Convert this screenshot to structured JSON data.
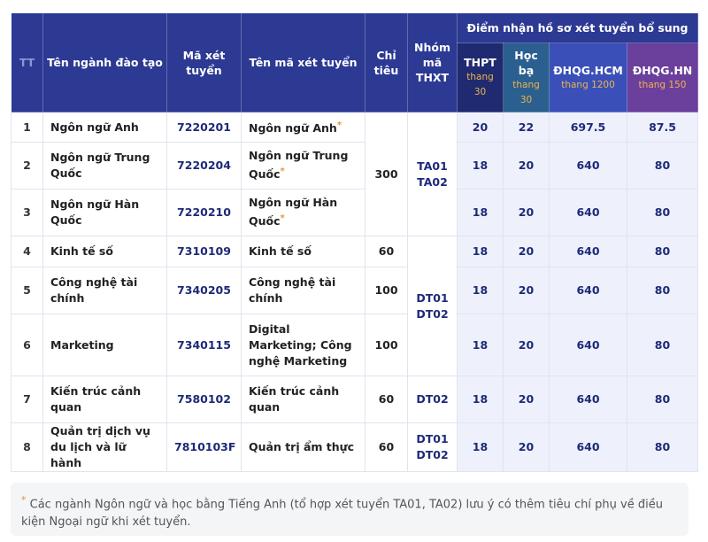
{
  "header": {
    "tt": "TT",
    "program": "Tên ngành đào tạo",
    "code": "Mã xét tuyển",
    "code_name": "Tên mã xét tuyển",
    "quota": "Chỉ tiêu",
    "group": "Nhóm mã THXT",
    "scores_title": "Điểm nhận hồ sơ xét tuyển bổ sung",
    "score_cols": [
      {
        "name": "THPT",
        "scale": "thang 30"
      },
      {
        "name": "Học bạ",
        "scale": "thang 30"
      },
      {
        "name": "ĐHQG.HCM",
        "scale": "thang 1200"
      },
      {
        "name": "ĐHQG.HN",
        "scale": "thang 150"
      }
    ]
  },
  "rows": [
    {
      "tt": "1",
      "program": "Ngôn ngữ Anh",
      "code": "7220201",
      "code_name": "Ngôn ngữ Anh",
      "code_name_marker": "*",
      "quota": "300",
      "group": [
        "TA01",
        "TA02"
      ],
      "scores": [
        "20",
        "22",
        "697.5",
        "87.5"
      ]
    },
    {
      "tt": "2",
      "program": "Ngôn ngữ Trung Quốc",
      "code": "7220204",
      "code_name": "Ngôn ngữ Trung Quốc",
      "code_name_marker": "*",
      "scores": [
        "18",
        "20",
        "640",
        "80"
      ]
    },
    {
      "tt": "3",
      "program": "Ngôn ngữ Hàn Quốc",
      "code": "7220210",
      "code_name": "Ngôn ngữ Hàn Quốc",
      "code_name_marker": "*",
      "scores": [
        "18",
        "20",
        "640",
        "80"
      ]
    },
    {
      "tt": "4",
      "program": "Kinh tế số",
      "code": "7310109",
      "code_name": "Kinh tế số",
      "quota": "60",
      "group": [
        "DT01",
        "DT02"
      ],
      "scores": [
        "18",
        "20",
        "640",
        "80"
      ]
    },
    {
      "tt": "5",
      "program": "Công nghệ tài chính",
      "code": "7340205",
      "code_name": "Công nghệ tài chính",
      "quota": "100",
      "scores": [
        "18",
        "20",
        "640",
        "80"
      ]
    },
    {
      "tt": "6",
      "program": "Marketing",
      "code": "7340115",
      "code_name": "Digital Marketing; Công nghệ Marketing",
      "quota": "100",
      "scores": [
        "18",
        "20",
        "640",
        "80"
      ]
    },
    {
      "tt": "7",
      "program": "Kiến trúc cảnh quan",
      "code": "7580102",
      "code_name": "Kiến trúc cảnh quan",
      "quota": "60",
      "group": [
        "DT02"
      ],
      "scores": [
        "18",
        "20",
        "640",
        "80"
      ]
    },
    {
      "tt": "8",
      "program": "Quản trị dịch vụ du lịch và lữ hành",
      "code": "7810103F",
      "code_name": "Quản trị ẩm thực",
      "quota": "60",
      "group": [
        "DT01",
        "DT02"
      ],
      "scores": [
        "18",
        "20",
        "640",
        "80"
      ]
    }
  ],
  "note": {
    "marker": "*",
    "text": "Các ngành Ngôn ngữ và học bằng Tiếng Anh (tổ hợp xét tuyển TA01, TA02) lưu ý có thêm tiêu chí phụ về điều kiện Ngoại ngữ khi xét tuyển."
  }
}
